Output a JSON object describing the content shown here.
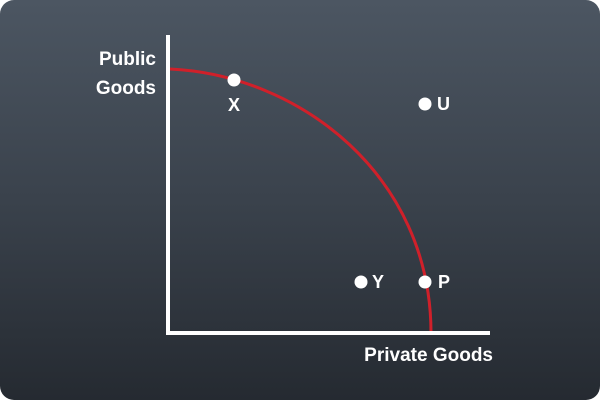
{
  "diagram": {
    "y_axis_label_line1": "Public",
    "y_axis_label_line2": "Goods",
    "x_axis_label": "Private Goods",
    "colors": {
      "axis": "#ffffff",
      "curve": "#d0202a",
      "point": "#ffffff",
      "text": "#ffffff"
    },
    "points": [
      {
        "label": "X",
        "position": "on the curve"
      },
      {
        "label": "U",
        "position": "outside the curve"
      },
      {
        "label": "Y",
        "position": "inside the curve"
      },
      {
        "label": "P",
        "position": "on the curve"
      }
    ]
  }
}
